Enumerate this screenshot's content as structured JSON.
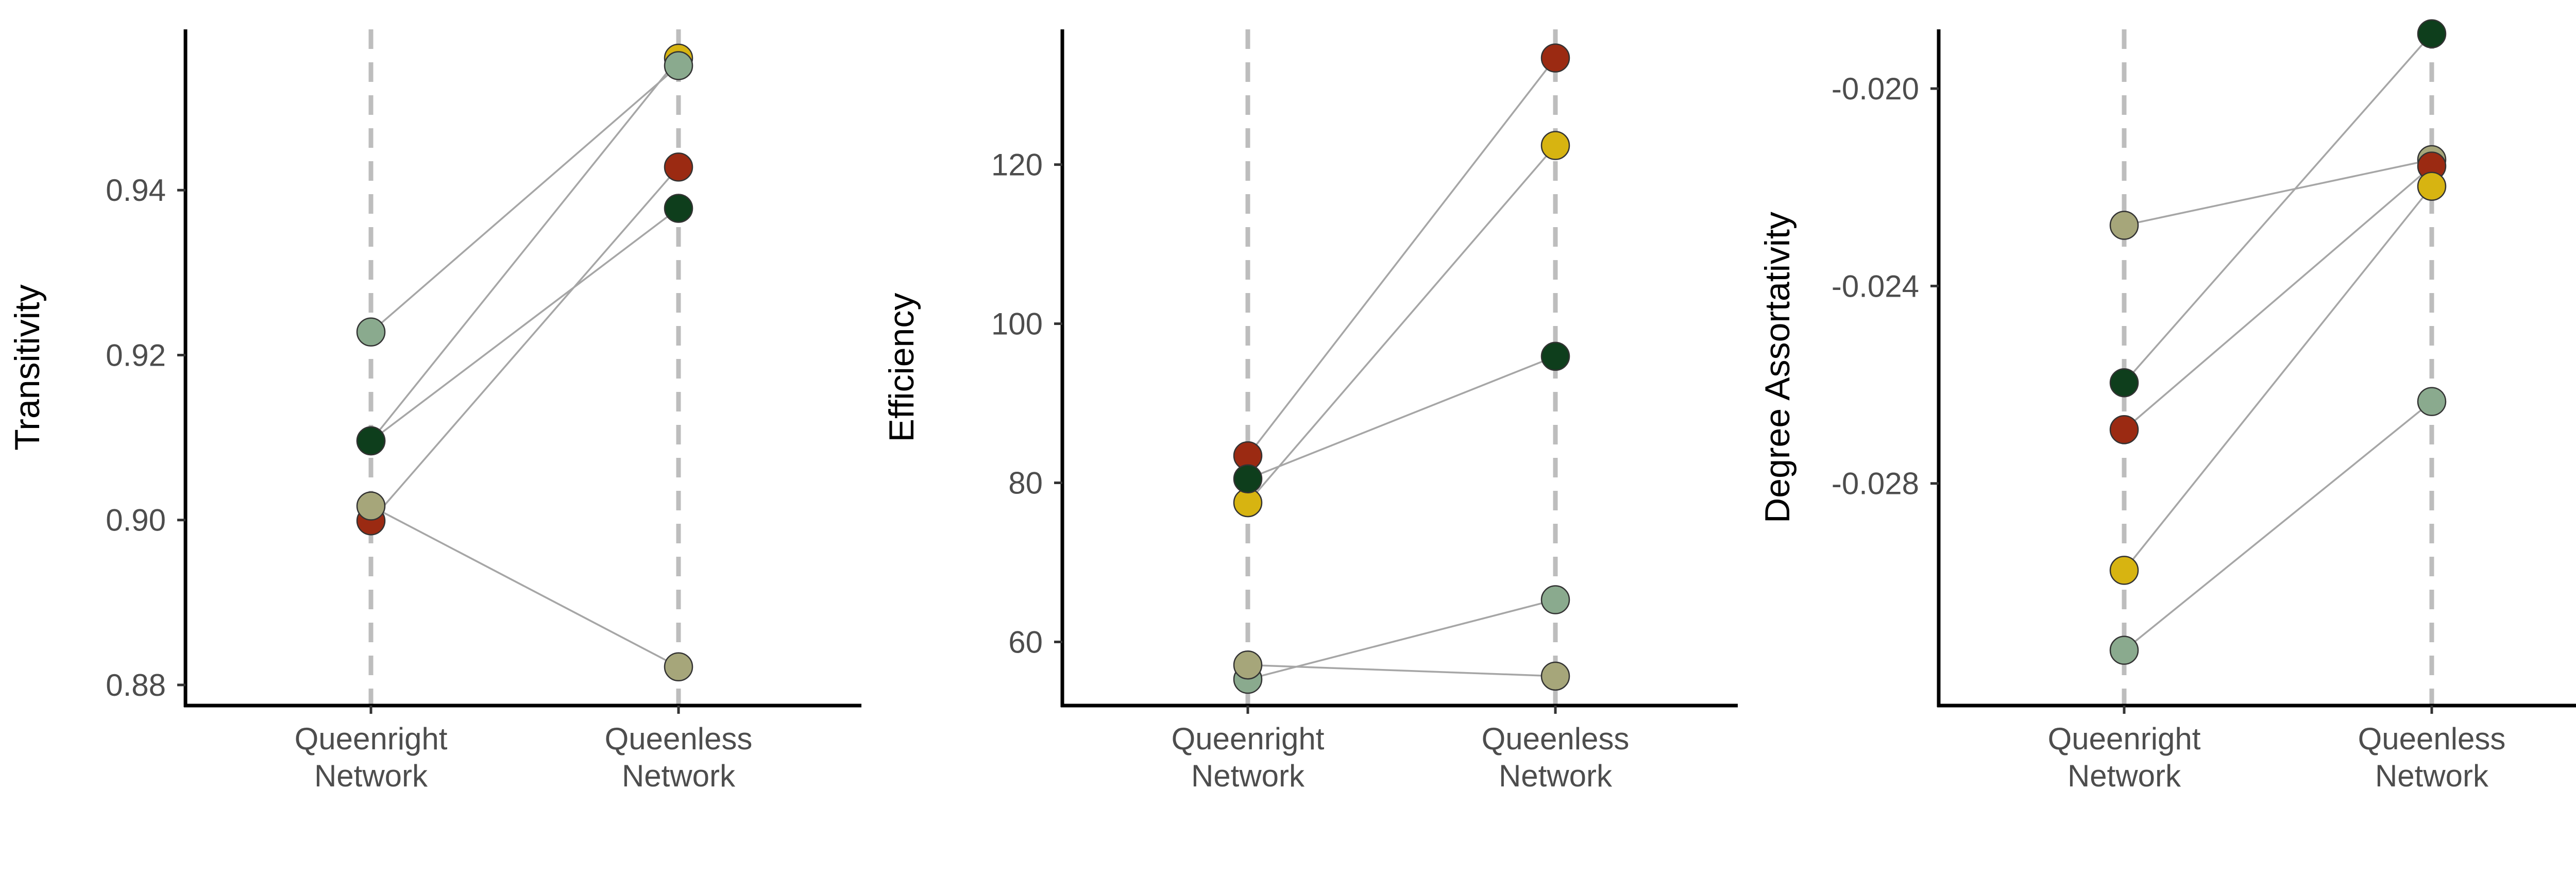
{
  "categories": [
    "Queenright Network",
    "Queenless Network"
  ],
  "category_lines": [
    [
      "Queenright",
      "Network"
    ],
    [
      "Queenless",
      "Network"
    ]
  ],
  "colors": {
    "sage": "#8aaa8e",
    "dark_green": "#0e3e1c",
    "olive": "#a6a67a",
    "red": "#9b2a12",
    "gold": "#d7b411"
  },
  "chart_data": [
    {
      "type": "scatter",
      "ylabel": "Transitivity",
      "categories": [
        "Queenright Network",
        "Queenless Network"
      ],
      "ylim": [
        0.8775,
        0.9595
      ],
      "yticks": [
        0.88,
        0.9,
        0.92,
        0.94
      ],
      "ytick_labels": [
        "0.88",
        "0.90",
        "0.92",
        "0.94"
      ],
      "grid": false,
      "series": [
        {
          "color": "#d7b411",
          "values": [
            0.9096,
            0.956
          ]
        },
        {
          "color": "#8aaa8e",
          "values": [
            0.9228,
            0.9551
          ]
        },
        {
          "color": "#9b2a12",
          "values": [
            0.8999,
            0.9428
          ]
        },
        {
          "color": "#0e3e1c",
          "values": [
            0.9096,
            0.9378
          ]
        },
        {
          "color": "#a6a67a",
          "values": [
            0.9017,
            0.8822
          ]
        }
      ]
    },
    {
      "type": "scatter",
      "ylabel": "Efficiency",
      "categories": [
        "Queenright Network",
        "Queenless Network"
      ],
      "ylim": [
        52,
        137
      ],
      "yticks": [
        60,
        80,
        100,
        120
      ],
      "ytick_labels": [
        "60",
        "80",
        "100",
        "120"
      ],
      "grid": false,
      "series": [
        {
          "color": "#9b2a12",
          "values": [
            83.4,
            133.4
          ]
        },
        {
          "color": "#d7b411",
          "values": [
            77.5,
            122.4
          ]
        },
        {
          "color": "#0e3e1c",
          "values": [
            80.5,
            95.9
          ]
        },
        {
          "color": "#8aaa8e",
          "values": [
            55.3,
            65.3
          ]
        },
        {
          "color": "#a6a67a",
          "values": [
            57.1,
            55.7
          ]
        }
      ]
    },
    {
      "type": "scatter",
      "ylabel": "Degree Assortativity",
      "categories": [
        "Queenright Network",
        "Queenless Network"
      ],
      "ylim": [
        -0.0325,
        -0.0188
      ],
      "yticks": [
        -0.028,
        -0.024,
        -0.02
      ],
      "ytick_labels": [
        "-0.028",
        "-0.024",
        "-0.020"
      ],
      "grid": false,
      "series": [
        {
          "color": "#a6a67a",
          "values": [
            -0.02277,
            -0.02144
          ]
        },
        {
          "color": "#0e3e1c",
          "values": [
            -0.02596,
            -0.01889
          ]
        },
        {
          "color": "#9b2a12",
          "values": [
            -0.02691,
            -0.02157
          ]
        },
        {
          "color": "#d7b411",
          "values": [
            -0.02976,
            -0.02198
          ]
        },
        {
          "color": "#8aaa8e",
          "values": [
            -0.03138,
            -0.02634
          ]
        }
      ]
    }
  ]
}
